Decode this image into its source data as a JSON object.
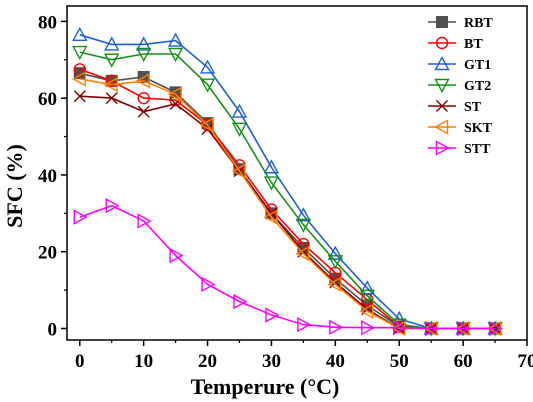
{
  "chart_data": {
    "type": "line",
    "xlabel": "Temperure (°C)",
    "ylabel": "SFC (%)",
    "xlim": [
      -2,
      70
    ],
    "ylim": [
      -3,
      84
    ],
    "xticks": [
      0,
      10,
      20,
      30,
      40,
      50,
      60,
      70
    ],
    "yticks": [
      0,
      20,
      40,
      60,
      80
    ],
    "grid": false,
    "legend_position": "top-right",
    "x": [
      0,
      5,
      10,
      15,
      20,
      25,
      30,
      35,
      40,
      45,
      50,
      55,
      60,
      65
    ],
    "series": [
      {
        "name": "RBT",
        "marker": "square-filled",
        "color": "#505050",
        "values": [
          66.5,
          64.5,
          65.5,
          61.5,
          53.5,
          41.5,
          30,
          21,
          13,
          6,
          0.5,
          0,
          0,
          0
        ]
      },
      {
        "name": "BT",
        "marker": "circle",
        "color": "#ff0000",
        "values": [
          67.5,
          64.5,
          60,
          59.5,
          53,
          42.5,
          31,
          22,
          14.5,
          7.5,
          0.5,
          0,
          0,
          0
        ]
      },
      {
        "name": "GT1",
        "marker": "triangle-up",
        "color": "#1f5fd8",
        "values": [
          76.5,
          74,
          74,
          75,
          68,
          56.5,
          42,
          29.5,
          19.5,
          10.5,
          2.5,
          0,
          0,
          0
        ]
      },
      {
        "name": "GT2",
        "marker": "triangle-down",
        "color": "#1a8f1a",
        "values": [
          72,
          70,
          71.5,
          71.5,
          63.5,
          52,
          38,
          27,
          17.5,
          8.5,
          1,
          0,
          0,
          0
        ]
      },
      {
        "name": "ST",
        "marker": "x",
        "color": "#800000",
        "values": [
          60.5,
          60,
          56.5,
          58.5,
          52,
          41,
          30,
          20,
          12,
          5,
          0,
          0,
          0,
          0
        ]
      },
      {
        "name": "SKT",
        "marker": "triangle-left",
        "color": "#ff8000",
        "values": [
          65,
          63.5,
          64.5,
          61,
          53,
          41,
          29,
          19.5,
          11.5,
          4.5,
          0,
          0,
          0,
          0
        ]
      },
      {
        "name": "STT",
        "marker": "triangle-right",
        "color": "#ff00ff",
        "values": [
          29,
          32,
          28,
          19,
          11.5,
          7,
          3.5,
          1,
          0.3,
          0.2,
          0.2,
          0,
          0,
          0
        ]
      }
    ]
  }
}
